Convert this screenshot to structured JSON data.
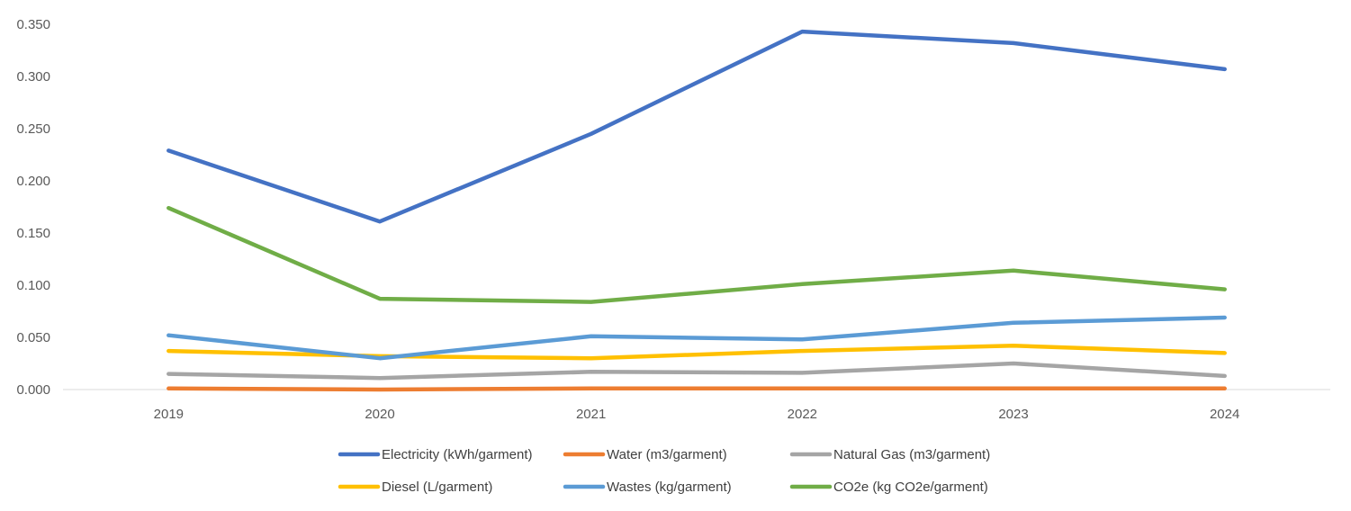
{
  "chart_data": {
    "type": "line",
    "title": "",
    "xlabel": "",
    "ylabel": "",
    "categories": [
      "2019",
      "2020",
      "2021",
      "2022",
      "2023",
      "2024"
    ],
    "y_ticks": [
      "0.000",
      "0.050",
      "0.100",
      "0.150",
      "0.200",
      "0.250",
      "0.300",
      "0.350"
    ],
    "ylim": [
      0,
      0.35
    ],
    "grid": false,
    "legend_position": "bottom",
    "series": [
      {
        "name": "Electricity (kWh/garment)",
        "color": "#4472C4",
        "values": [
          0.229,
          0.161,
          0.245,
          0.343,
          0.332,
          0.307
        ]
      },
      {
        "name": "Water (m3/garment)",
        "color": "#ED7D31",
        "values": [
          0.001,
          0.0,
          0.001,
          0.001,
          0.001,
          0.001
        ]
      },
      {
        "name": "Natural Gas (m3/garment)",
        "color": "#A5A5A5",
        "values": [
          0.015,
          0.011,
          0.017,
          0.016,
          0.025,
          0.013
        ]
      },
      {
        "name": "Diesel (L/garment)",
        "color": "#FFC000",
        "values": [
          0.037,
          0.032,
          0.03,
          0.037,
          0.042,
          0.035
        ]
      },
      {
        "name": "Wastes (kg/garment)",
        "color": "#5B9BD5",
        "values": [
          0.052,
          0.03,
          0.051,
          0.048,
          0.064,
          0.069
        ]
      },
      {
        "name": "CO2e (kg CO2e/garment)",
        "color": "#70AD47",
        "values": [
          0.174,
          0.087,
          0.084,
          0.101,
          0.114,
          0.096
        ]
      }
    ]
  }
}
